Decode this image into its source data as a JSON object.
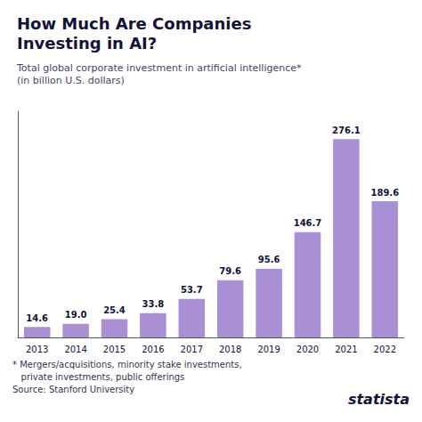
{
  "chart_data": {
    "type": "bar",
    "title": [
      "How Much Are Companies",
      "Investing in AI?"
    ],
    "subtitle": [
      "Total global corporate investment in artificial intelligence*",
      "(in billion U.S. dollars)"
    ],
    "categories": [
      "2013",
      "2014",
      "2015",
      "2016",
      "2017",
      "2018",
      "2019",
      "2020",
      "2021",
      "2022"
    ],
    "values": [
      14.6,
      19.0,
      25.4,
      33.8,
      53.7,
      79.6,
      95.6,
      146.7,
      276.1,
      189.6
    ],
    "value_labels": [
      "14.6",
      "19.0",
      "25.4",
      "33.8",
      "53.7",
      "79.6",
      "95.6",
      "146.7",
      "276.1",
      "189.6"
    ],
    "data_labels": true,
    "color": "#a98fd4",
    "ylim": [
      0,
      315
    ],
    "tick_labels": "x",
    "grid": false,
    "annotations": [
      "* Mergers/acquisitions, minority stake investments,",
      "   private investments, public offerings",
      "Source: Stanford University",
      "statista"
    ]
  }
}
